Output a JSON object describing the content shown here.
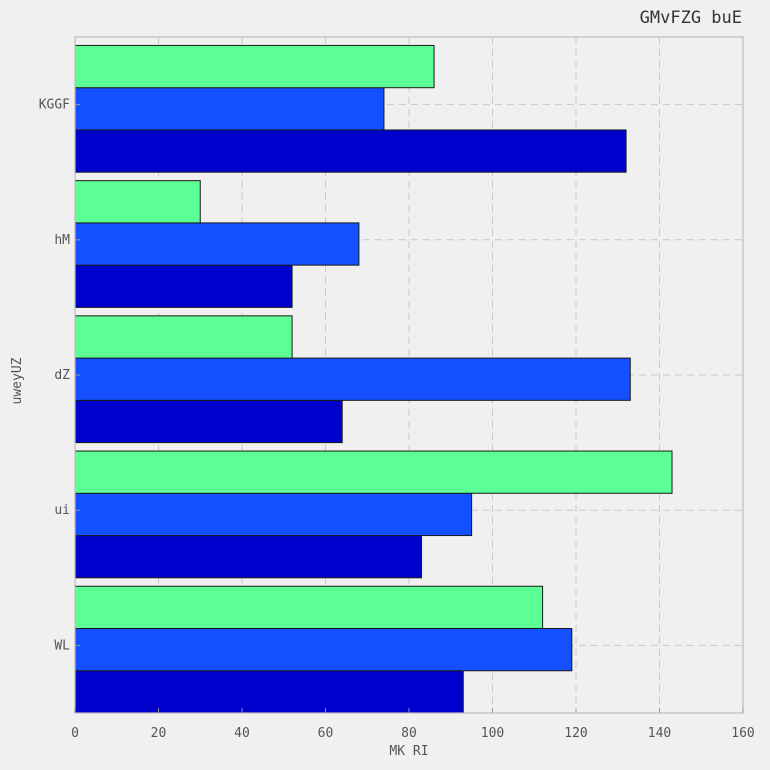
{
  "chart_data": {
    "type": "bar",
    "orientation": "horizontal",
    "title": "GMvFZG buE",
    "xlabel": "MK RI",
    "ylabel": "uweyUZ",
    "categories": [
      "WL",
      "ui",
      "dZ",
      "hM",
      "KGGF"
    ],
    "xlim": [
      0,
      160
    ],
    "xticks": [
      0,
      20,
      40,
      60,
      80,
      100,
      120,
      140,
      160
    ],
    "grid": true,
    "series": [
      {
        "color": "#0000cc",
        "values": [
          93,
          83,
          64,
          52,
          132
        ]
      },
      {
        "color": "#1450ff",
        "values": [
          119,
          95,
          133,
          68,
          74
        ]
      },
      {
        "color": "#5cff94",
        "values": [
          112,
          143,
          52,
          30,
          86
        ]
      }
    ]
  }
}
